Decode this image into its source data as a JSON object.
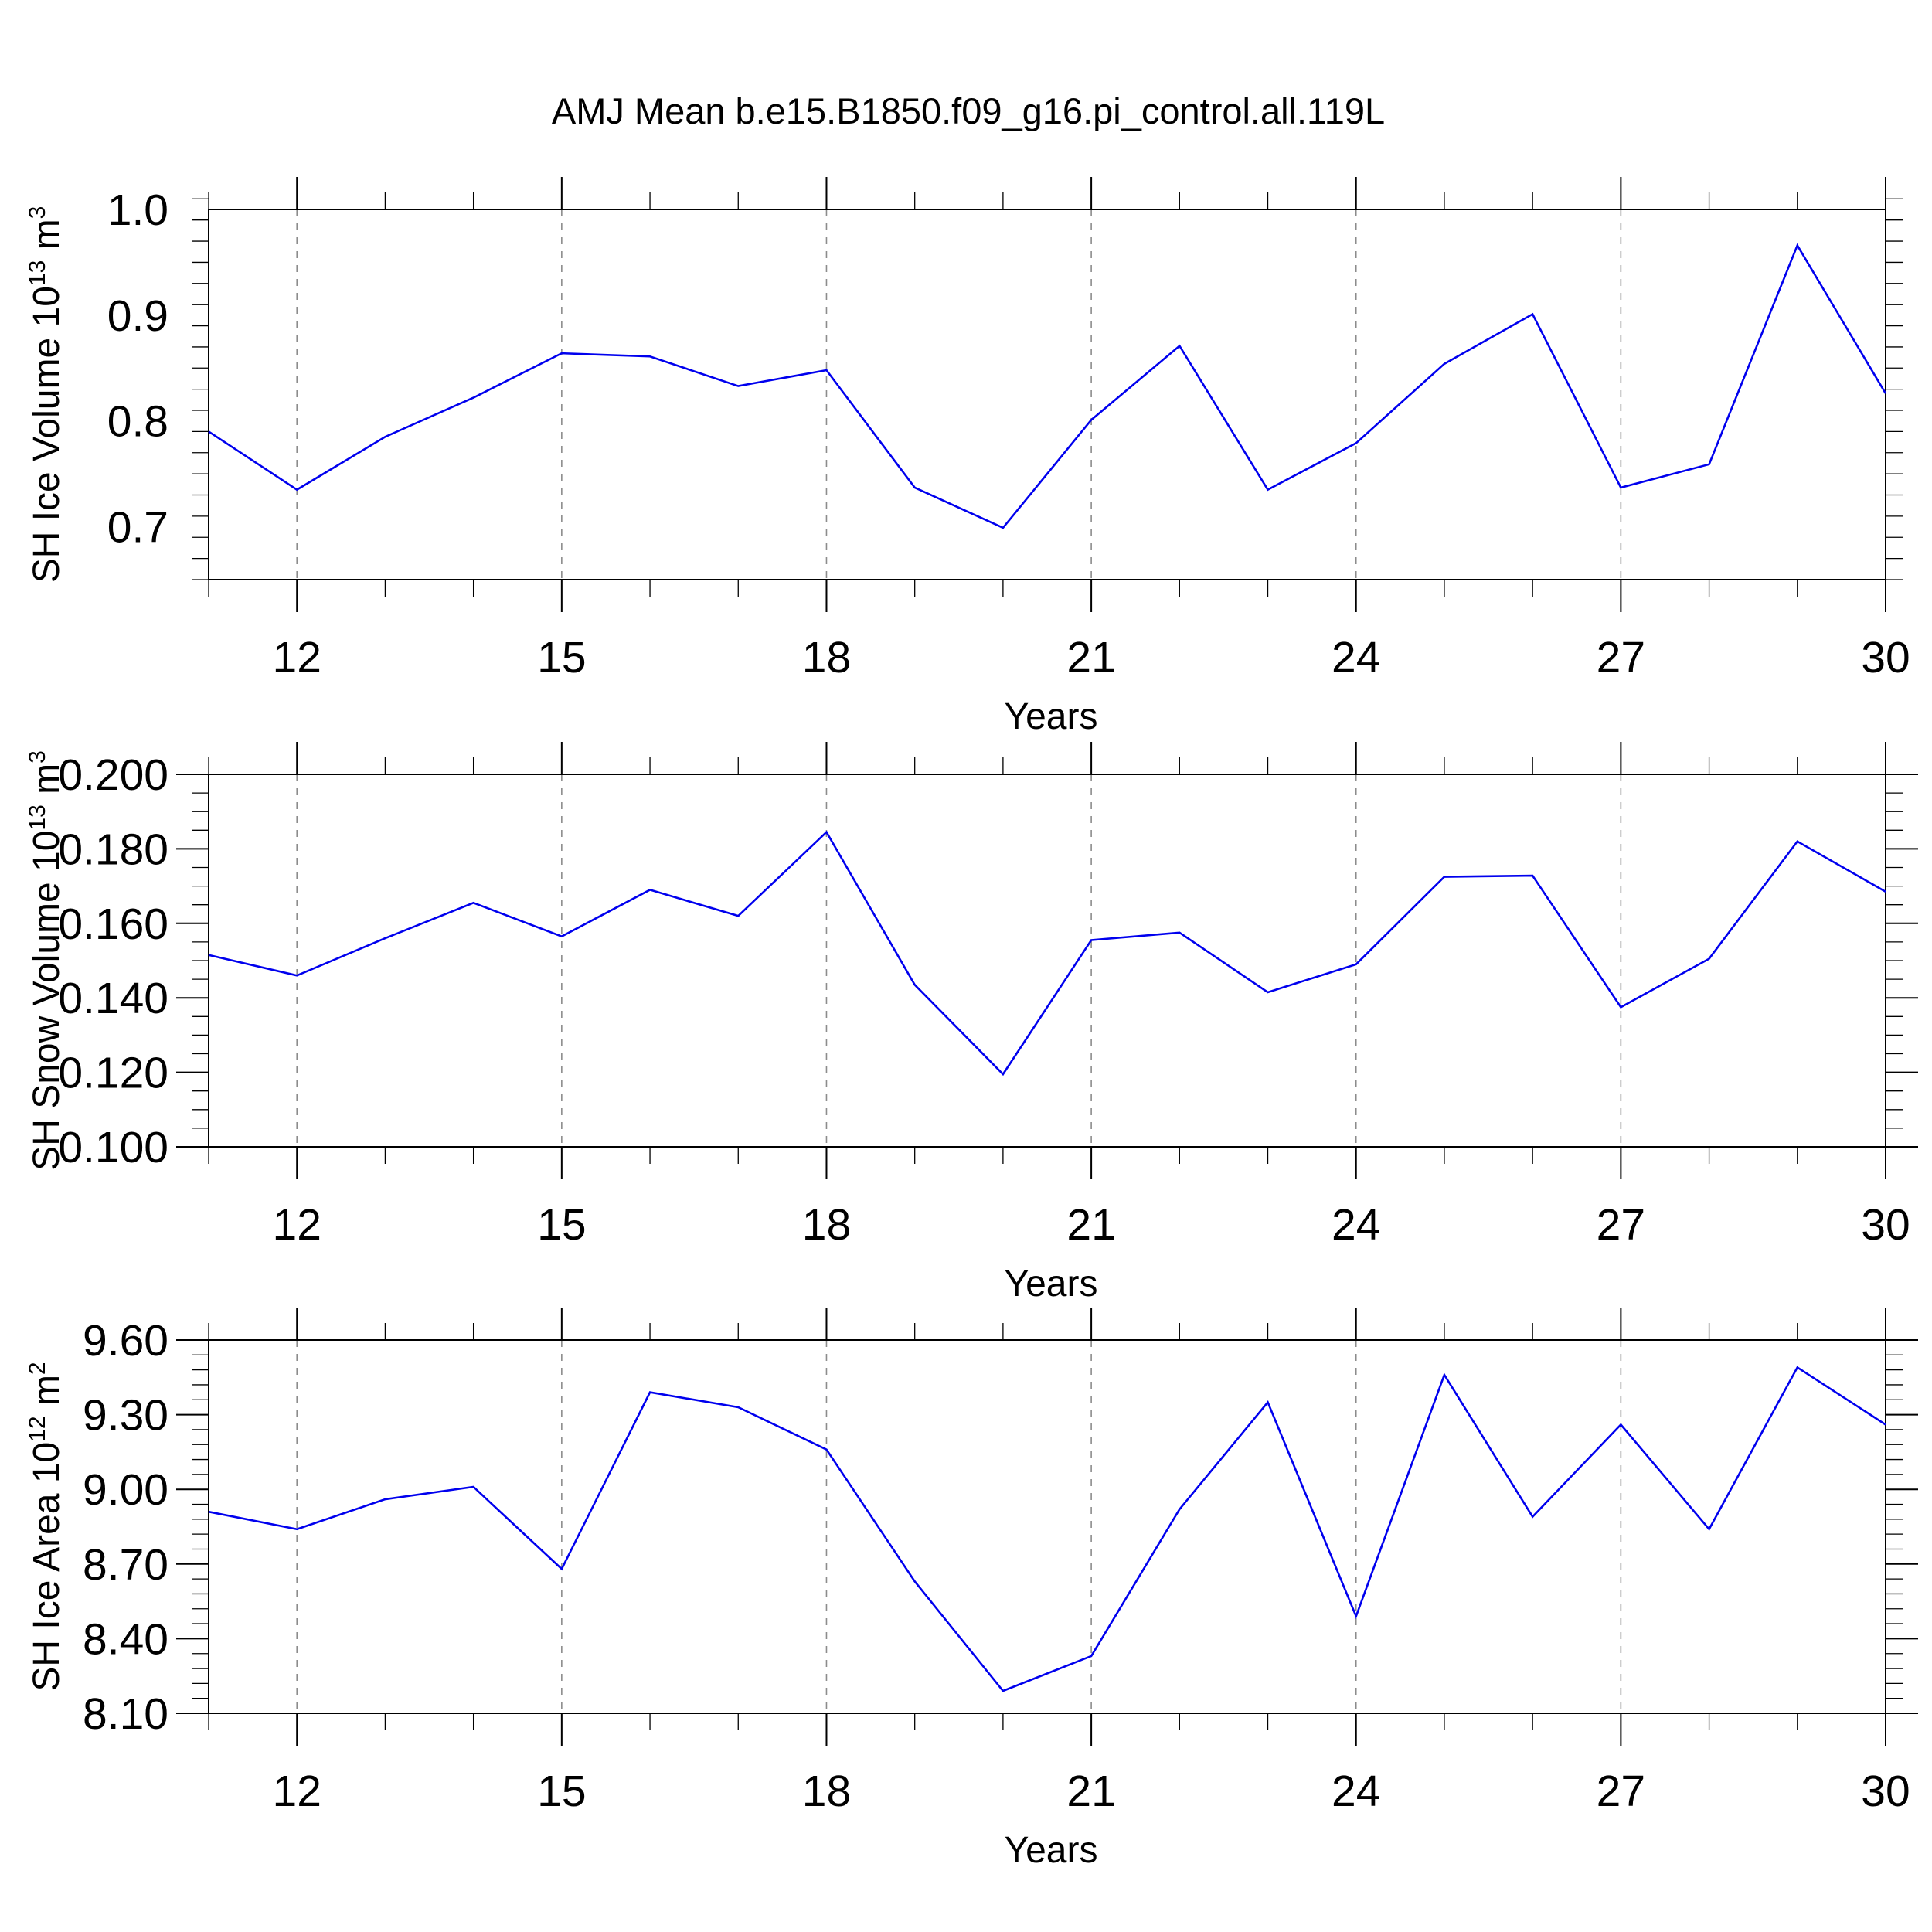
{
  "figure": {
    "title": "AMJ Mean b.e15.B1850.f09_g16.pi_control.all.119L",
    "line_color": "#0000ee"
  },
  "chart_data": [
    {
      "type": "line",
      "ylabel_parts": [
        "SH Ice Volume 10",
        "13",
        " m",
        "3"
      ],
      "xlabel": "Years",
      "x": [
        11,
        12,
        13,
        14,
        15,
        16,
        17,
        18,
        19,
        20,
        21,
        22,
        23,
        24,
        25,
        26,
        27,
        28,
        29,
        30
      ],
      "values": [
        0.79,
        0.735,
        0.785,
        0.822,
        0.864,
        0.861,
        0.833,
        0.848,
        0.737,
        0.699,
        0.801,
        0.871,
        0.735,
        0.779,
        0.854,
        0.901,
        0.737,
        0.759,
        0.966,
        0.826
      ],
      "xlim": [
        11,
        30
      ],
      "ylim": [
        0.65,
        1.0
      ],
      "xticks": [
        12,
        15,
        18,
        21,
        24,
        27,
        30
      ],
      "yticks": [
        0.7,
        0.8,
        0.9,
        1.0
      ],
      "ytick_labels": [
        "0.7",
        "0.8",
        "0.9",
        "1.0"
      ],
      "yminor_step": 0.02,
      "grid": "vertical-dashed"
    },
    {
      "type": "line",
      "ylabel_parts": [
        "SH Snow Volume 10",
        "13",
        " m",
        "3"
      ],
      "xlabel": "Years",
      "x": [
        11,
        12,
        13,
        14,
        15,
        16,
        17,
        18,
        19,
        20,
        21,
        22,
        23,
        24,
        25,
        26,
        27,
        28,
        29,
        30
      ],
      "values": [
        0.1515,
        0.146,
        0.156,
        0.1655,
        0.1565,
        0.169,
        0.162,
        0.1845,
        0.1435,
        0.1195,
        0.1555,
        0.1575,
        0.1415,
        0.149,
        0.1725,
        0.1728,
        0.1375,
        0.1505,
        0.182,
        0.1685
      ],
      "xlim": [
        11,
        30
      ],
      "ylim": [
        0.1,
        0.2
      ],
      "xticks": [
        12,
        15,
        18,
        21,
        24,
        27,
        30
      ],
      "yticks": [
        0.1,
        0.12,
        0.14,
        0.16,
        0.18,
        0.2
      ],
      "ytick_labels": [
        "0.100",
        "0.120",
        "0.140",
        "0.160",
        "0.180",
        "0.200"
      ],
      "yminor_step": 0.005,
      "grid": "vertical-dashed"
    },
    {
      "type": "line",
      "ylabel_parts": [
        "SH Ice Area 10",
        "12",
        " m",
        "2"
      ],
      "xlabel": "Years",
      "x": [
        11,
        12,
        13,
        14,
        15,
        16,
        17,
        18,
        19,
        20,
        21,
        22,
        23,
        24,
        25,
        26,
        27,
        28,
        29,
        30
      ],
      "values": [
        8.91,
        8.84,
        8.96,
        9.01,
        8.68,
        9.39,
        9.33,
        9.16,
        8.63,
        8.19,
        8.33,
        8.92,
        9.35,
        8.49,
        9.46,
        8.89,
        9.26,
        8.84,
        9.49,
        9.26
      ],
      "xlim": [
        11,
        30
      ],
      "ylim": [
        8.1,
        9.6
      ],
      "xticks": [
        12,
        15,
        18,
        21,
        24,
        27,
        30
      ],
      "yticks": [
        8.1,
        8.4,
        8.7,
        9.0,
        9.3,
        9.6
      ],
      "ytick_labels": [
        "8.10",
        "8.40",
        "8.70",
        "9.00",
        "9.30",
        "9.60"
      ],
      "yminor_step": 0.06,
      "grid": "vertical-dashed"
    }
  ]
}
